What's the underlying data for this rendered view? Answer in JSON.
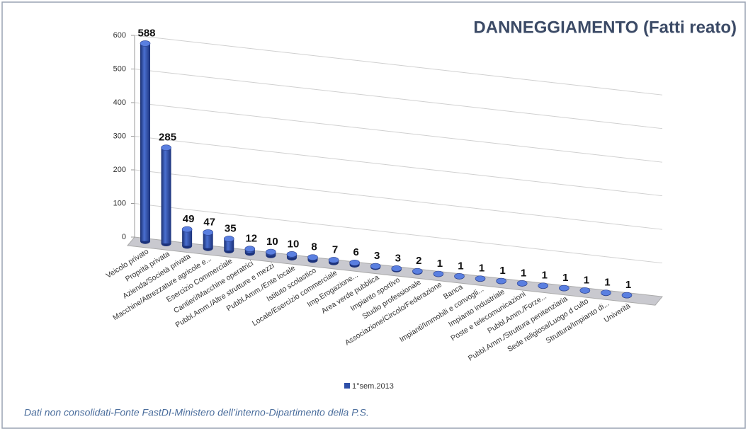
{
  "chart_data": {
    "type": "bar",
    "title": "DANNEGGIAMENTO (Fatti reato)",
    "footnote": "Dati non consolidati-Fonte FastDI-Ministero dell’interno-Dipartimento della P.S.",
    "categories": [
      "Veicolo privato",
      "Proprità privata",
      "Azienda/Società privata",
      "Macchine/Attrezzature agricole e...",
      "Esercizio Commerciale",
      "Cantieri/Macchine operatrici",
      "Pubbl.Amm./Altre strutture e mezzi",
      "Pubbl.Amm./Ente locale",
      "Istituto scolastico",
      "Locale/Esercizio commerciale",
      "Imp.Erogazione...",
      "Area verde pubblica",
      "Impianto sportivo",
      "Studio professionale",
      "Associazione/Circolo/Federazione",
      "Banca",
      "Impianti/Immobili e convogli...",
      "Impianto industriale",
      "Poste e telecomunicazioni",
      "Pubbl.Amm./Forze...",
      "Pubbl.Amm./Struttura penitenziaria",
      "Sede religiosa/Luogo d culto",
      "Struttura/Impianto di...",
      "Univerità"
    ],
    "series": [
      {
        "name": "1°sem.2013",
        "color": "#2e4fa8",
        "values": [
          588,
          285,
          49,
          47,
          35,
          12,
          10,
          10,
          8,
          7,
          6,
          3,
          3,
          2,
          1,
          1,
          1,
          1,
          1,
          1,
          1,
          1,
          1,
          1
        ]
      }
    ],
    "ylim": [
      0,
      600
    ],
    "yticks": [
      0,
      100,
      200,
      300,
      400,
      500,
      600
    ],
    "grid": true,
    "legend": "bottom"
  }
}
